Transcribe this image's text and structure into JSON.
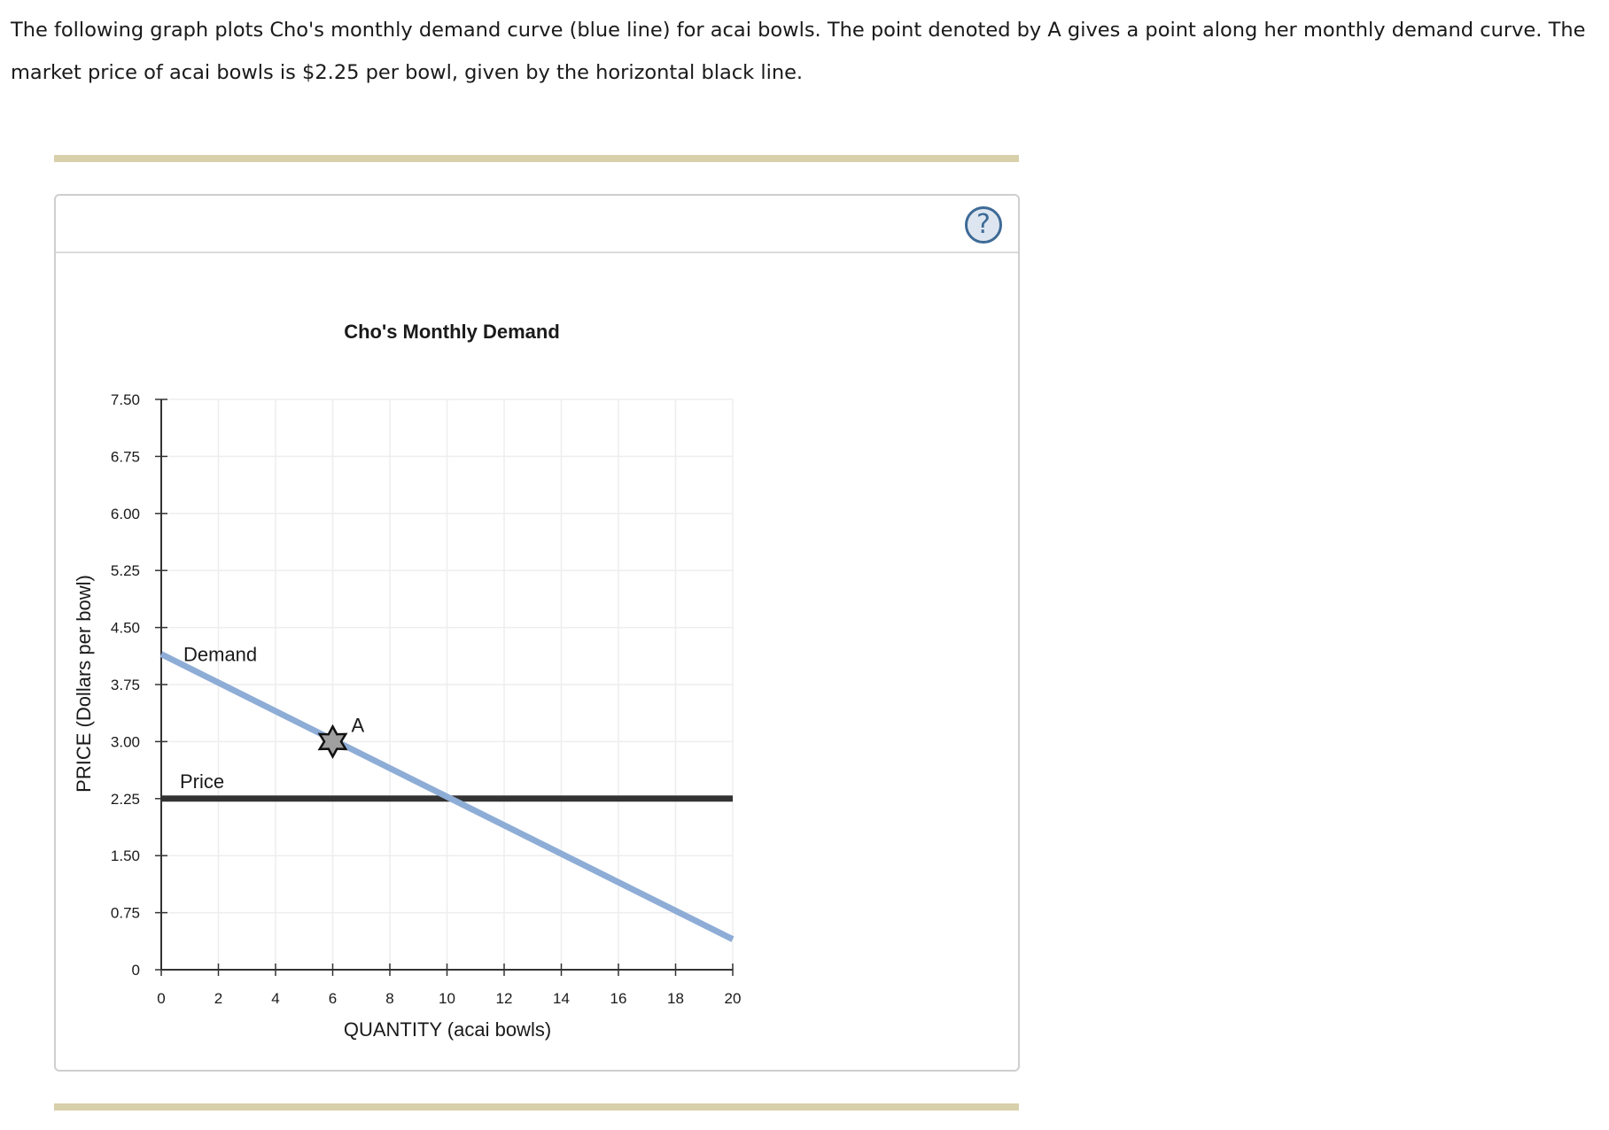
{
  "question": {
    "text": "The following graph plots Cho's monthly demand curve (blue line) for acai bowls. The point denoted by A gives a point along her monthly demand curve. The market price of acai bowls is $2.25 per bowl, given by the horizontal black line."
  },
  "panel": {
    "help_label": "?"
  },
  "chart_data": {
    "type": "line",
    "title": "Cho's Monthly Demand",
    "xlabel": "QUANTITY (acai bowls)",
    "ylabel": "PRICE (Dollars per bowl)",
    "xlim": [
      0,
      20
    ],
    "ylim": [
      0,
      7.5
    ],
    "xticks": [
      0,
      2,
      4,
      6,
      8,
      10,
      12,
      14,
      16,
      18,
      20
    ],
    "xtick_labels": [
      "0",
      "2",
      "4",
      "6",
      "8",
      "10",
      "12",
      "14",
      "16",
      "18",
      "20"
    ],
    "yticks": [
      0,
      0.75,
      1.5,
      2.25,
      3.0,
      3.75,
      4.5,
      5.25,
      6.0,
      6.75,
      7.5
    ],
    "ytick_labels": [
      "0",
      "0.75",
      "1.50",
      "2.25",
      "3.00",
      "3.75",
      "4.50",
      "5.25",
      "6.00",
      "6.75",
      "7.50"
    ],
    "grid": true,
    "series": [
      {
        "name": "Demand",
        "color": "#8eadd6",
        "x": [
          0,
          20
        ],
        "y": [
          4.15,
          0.4
        ]
      },
      {
        "name": "Price",
        "color": "#333333",
        "x": [
          0,
          20
        ],
        "y": [
          2.25,
          2.25
        ]
      }
    ],
    "points": [
      {
        "label": "A",
        "x": 6,
        "y": 3.0,
        "marker": "star"
      }
    ]
  }
}
